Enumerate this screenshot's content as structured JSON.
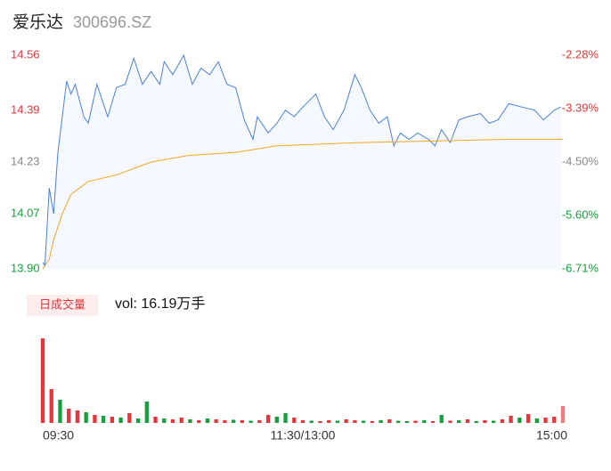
{
  "header": {
    "title": "爱乐达",
    "code": "300696.SZ"
  },
  "chart_data": [
    {
      "type": "line",
      "title": "price",
      "x": [
        0,
        1,
        3,
        5,
        7,
        9,
        11,
        13,
        15,
        19,
        21,
        25,
        30,
        34,
        38,
        42,
        46,
        50,
        54,
        56,
        60,
        65,
        69,
        73,
        77,
        81,
        85,
        89,
        93,
        97,
        99,
        104,
        108,
        112,
        116,
        120,
        126,
        130,
        134,
        139,
        144,
        147,
        151,
        155,
        159,
        162,
        165,
        169,
        173,
        178,
        181,
        184,
        188,
        192,
        196,
        202,
        206,
        210,
        215,
        221,
        227,
        231,
        236,
        239
      ],
      "series": [
        {
          "name": "price",
          "color": "#4a7fe0",
          "values": [
            13.92,
            13.91,
            14.15,
            14.07,
            14.26,
            14.37,
            14.48,
            14.44,
            14.47,
            14.37,
            14.35,
            14.47,
            14.37,
            14.46,
            14.47,
            14.55,
            14.47,
            14.51,
            14.47,
            14.54,
            14.5,
            14.56,
            14.47,
            14.52,
            14.5,
            14.54,
            14.47,
            14.46,
            14.36,
            14.3,
            14.37,
            14.32,
            14.35,
            14.39,
            14.37,
            14.4,
            14.44,
            14.37,
            14.33,
            14.39,
            14.5,
            14.46,
            14.39,
            14.35,
            14.37,
            14.28,
            14.32,
            14.3,
            14.32,
            14.3,
            14.28,
            14.33,
            14.29,
            14.36,
            14.37,
            14.38,
            14.35,
            14.36,
            14.41,
            14.4,
            14.39,
            14.36,
            14.39,
            14.4
          ]
        },
        {
          "name": "average",
          "color": "#f5a623",
          "x": [
            0,
            3,
            5,
            9,
            13,
            21,
            34,
            46,
            50,
            67,
            89,
            108,
            145,
            214,
            240
          ],
          "values": [
            13.9,
            13.93,
            13.99,
            14.07,
            14.13,
            14.17,
            14.19,
            14.22,
            14.23,
            14.25,
            14.26,
            14.28,
            14.29,
            14.3,
            14.3
          ]
        }
      ],
      "xlim": [
        0,
        240
      ],
      "ylim": [
        13.9,
        14.56
      ],
      "yticks": [
        {
          "value": 13.9,
          "label": "13.90"
        },
        14.07,
        14.23,
        14.39,
        14.56
      ],
      "ytick_colors": [
        "#14a03c",
        "#14a03c",
        "#888888",
        "#e8353b",
        "#e8353b"
      ],
      "y2lim": [
        -6.71,
        -2.28
      ],
      "y2ticks": [
        {
          "value": -6.71,
          "label": "-6.71%"
        },
        {
          "value": -5.6,
          "label": "-5.60%"
        },
        {
          "value": -4.5,
          "label": "-4.50%"
        },
        {
          "value": -3.39,
          "label": "-3.39%"
        },
        {
          "value": -2.28,
          "label": "-2.28%"
        }
      ]
    },
    {
      "type": "bar",
      "badge": "日成交量",
      "summary": "vol: 16.19万手",
      "x": [
        0,
        4,
        8,
        12,
        16,
        20,
        24,
        28,
        32,
        36,
        40,
        44,
        48,
        52,
        56,
        60,
        64,
        68,
        72,
        76,
        80,
        84,
        88,
        92,
        96,
        100,
        104,
        108,
        112,
        116,
        120,
        124,
        128,
        132,
        136,
        140,
        144,
        148,
        152,
        156,
        160,
        164,
        168,
        172,
        176,
        180,
        184,
        188,
        192,
        196,
        200,
        204,
        208,
        212,
        216,
        220,
        224,
        228,
        232,
        236,
        240
      ],
      "values": [
        9500,
        3800,
        2600,
        1600,
        1400,
        1200,
        900,
        800,
        700,
        600,
        1100,
        500,
        2400,
        700,
        500,
        400,
        600,
        400,
        300,
        500,
        400,
        300,
        350,
        300,
        250,
        300,
        900,
        700,
        1100,
        600,
        300,
        250,
        200,
        300,
        250,
        400,
        300,
        250,
        200,
        300,
        400,
        250,
        200,
        250,
        300,
        200,
        900,
        250,
        300,
        400,
        200,
        300,
        250,
        400,
        800,
        600,
        1000,
        500,
        600,
        700,
        1900
      ],
      "colors": [
        "#e8353b",
        "#e8353b",
        "#14a03c",
        "#e8353b",
        "#e8353b",
        "#14a03c",
        "#e8353b",
        "#14a03c",
        "#e8353b",
        "#14a03c",
        "#e8353b",
        "#14a03c",
        "#14a03c",
        "#e8353b",
        "#14a03c",
        "#e8353b",
        "#e8353b",
        "#14a03c",
        "#e8353b",
        "#14a03c",
        "#e8353b",
        "#e8353b",
        "#14a03c",
        "#e8353b",
        "#14a03c",
        "#e8353b",
        "#e8353b",
        "#14a03c",
        "#14a03c",
        "#e8353b",
        "#e8353b",
        "#14a03c",
        "#e8353b",
        "#e8353b",
        "#14a03c",
        "#e8353b",
        "#e8353b",
        "#14a03c",
        "#e8353b",
        "#14a03c",
        "#e8353b",
        "#14a03c",
        "#14a03c",
        "#e8353b",
        "#14a03c",
        "#e8353b",
        "#14a03c",
        "#e8353b",
        "#14a03c",
        "#e8353b",
        "#14a03c",
        "#e8353b",
        "#14a03c",
        "#e8353b",
        "#e8353b",
        "#14a03c",
        "#e8353b",
        "#14a03c",
        "#e8353b",
        "#e8353b",
        "#f07a80"
      ],
      "xlim": [
        0,
        240
      ],
      "xticks": [
        {
          "value": 0,
          "label": "09:30"
        },
        {
          "value": 120,
          "label": "11:30/13:00"
        },
        {
          "value": 240,
          "label": "15:00"
        }
      ]
    }
  ]
}
